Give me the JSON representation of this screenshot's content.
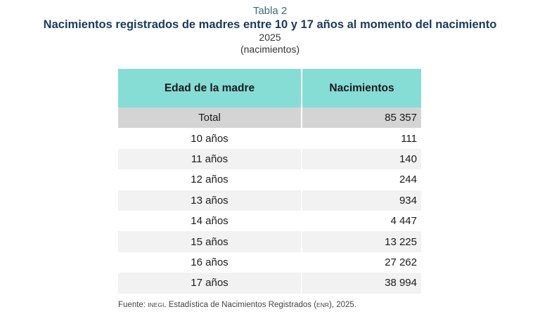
{
  "header": {
    "label": "Tabla 2",
    "title": "Nacimientos registrados de madres entre 10 y 17 años al momento del nacimiento",
    "year": "2025",
    "unit": "(nacimientos)"
  },
  "table": {
    "columns": [
      "Edad de la madre",
      "Nacimientos"
    ],
    "total": {
      "label": "Total",
      "value": "85 357"
    },
    "rows": [
      {
        "age": "10 años",
        "value": "111"
      },
      {
        "age": "11 años",
        "value": "140"
      },
      {
        "age": "12 años",
        "value": "244"
      },
      {
        "age": "13 años",
        "value": "934"
      },
      {
        "age": "14 años",
        "value": "4 447"
      },
      {
        "age": "15 años",
        "value": "13 225"
      },
      {
        "age": "16 años",
        "value": "27 262"
      },
      {
        "age": "17 años",
        "value": "38 994"
      }
    ]
  },
  "source": {
    "prefix": "Fuente: ",
    "org": "INEGI",
    "middle": ". Estadística de Nacimientos Registrados (",
    "abbr": "ENR",
    "suffix": "), 2025."
  }
}
